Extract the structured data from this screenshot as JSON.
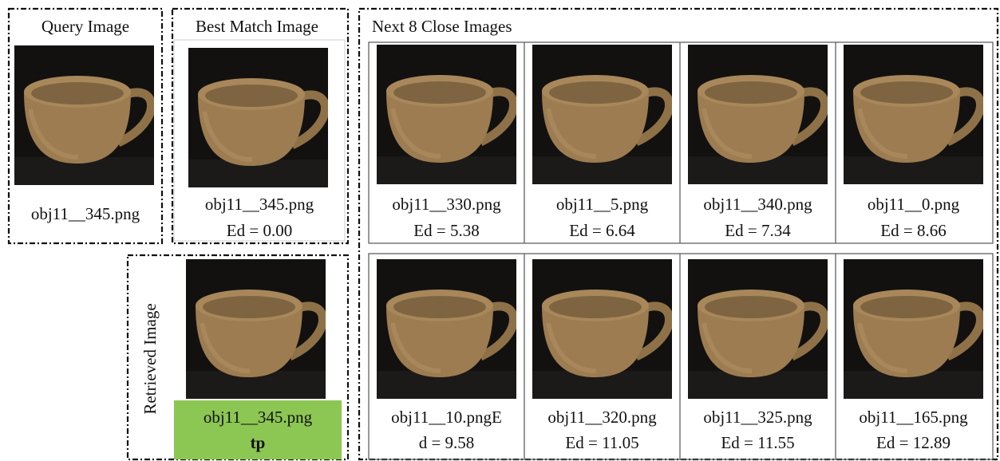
{
  "query": {
    "title": "Query Image",
    "filename": "obj11__345.png"
  },
  "best_match": {
    "title": "Best Match Image",
    "filename": "obj11__345.png",
    "distance": "Ed = 0.00"
  },
  "retrieved": {
    "title": "Retrieved Image",
    "filename": "obj11__345.png",
    "label": "tp"
  },
  "next": {
    "title": "Next 8 Close Images",
    "items": [
      {
        "caption": [
          "obj11__330.png",
          "Ed = 5.38"
        ]
      },
      {
        "caption": [
          "obj11__5.png",
          "Ed = 6.64"
        ]
      },
      {
        "caption": [
          "obj11__340.png",
          "Ed = 7.34"
        ]
      },
      {
        "caption": [
          "obj11__0.png",
          "Ed = 8.66"
        ]
      },
      {
        "caption": [
          "obj11__10.pngE",
          "d = 9.58"
        ]
      },
      {
        "caption": [
          "obj11__320.png",
          "Ed = 11.05"
        ]
      },
      {
        "caption": [
          "obj11__325.png",
          "Ed = 11.55"
        ]
      },
      {
        "caption": [
          "obj11__165.png",
          "Ed = 12.89"
        ]
      }
    ]
  }
}
